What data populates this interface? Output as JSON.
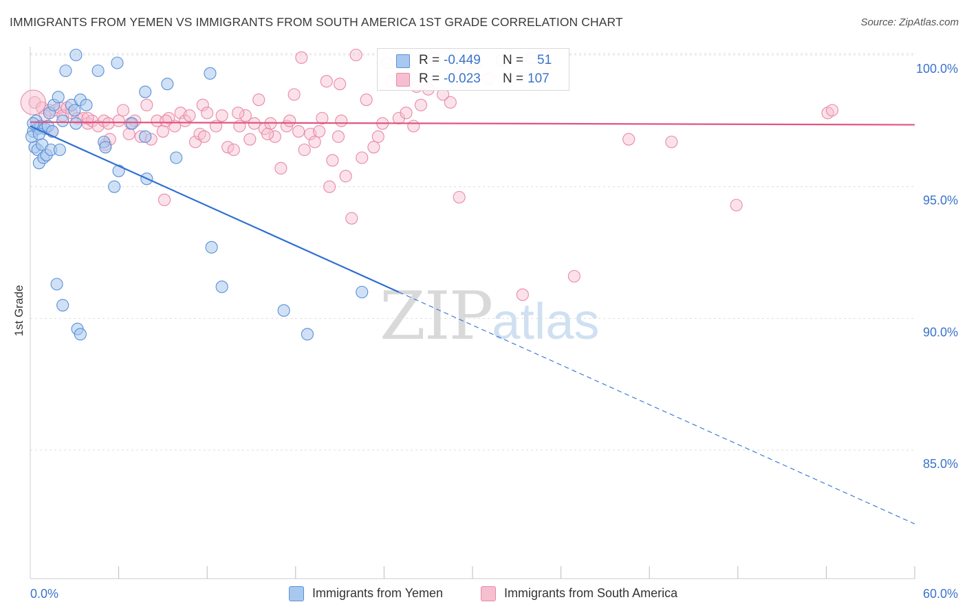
{
  "header": {
    "title": "IMMIGRANTS FROM YEMEN VS IMMIGRANTS FROM SOUTH AMERICA 1ST GRADE CORRELATION CHART",
    "source": "Source: ZipAtlas.com"
  },
  "watermark": {
    "part1": "ZIP",
    "part2": "atlas"
  },
  "legend": {
    "rows": [
      {
        "r_label": "R =",
        "r_value": "-0.449",
        "n_label": "N =",
        "n_value": "51"
      },
      {
        "r_label": "R =",
        "r_value": "-0.023",
        "n_label": "N =",
        "n_value": "107"
      }
    ]
  },
  "bottom_legend": {
    "series1": "Immigrants from Yemen",
    "series2": "Immigrants from South America"
  },
  "colors": {
    "series1_fill": "#a9c8ef",
    "series1_stroke": "#5a8fd6",
    "series1_line": "#2f6fd1",
    "series2_fill": "#f6bfd0",
    "series2_stroke": "#e889a6",
    "series2_line": "#e0557f",
    "axis_label": "#3a73c9",
    "grid": "#dddddd"
  },
  "chart_data": {
    "type": "scatter",
    "title": "IMMIGRANTS FROM YEMEN VS IMMIGRANTS FROM SOUTH AMERICA 1ST GRADE CORRELATION CHART",
    "xlabel": "",
    "ylabel": "1st Grade",
    "xlim": [
      0,
      60
    ],
    "ylim": [
      80.0,
      101.0
    ],
    "x_tick_labels": [
      "0.0%",
      "60.0%"
    ],
    "y_ticks": [
      100.0,
      95.0,
      90.0,
      85.0
    ],
    "y_tick_labels": [
      "100.0%",
      "95.0%",
      "90.0%",
      "85.0%"
    ],
    "grid": true,
    "series": [
      {
        "name": "Immigrants from Yemen",
        "color_key": "series1",
        "R": -0.449,
        "N": 51,
        "trend": {
          "x0": 0.0,
          "y0": 97.3,
          "x1": 25.0,
          "y1": 91.0,
          "dash_x1": 60.0,
          "dash_y1": 82.2
        },
        "points": [
          [
            0.2,
            97.1
          ],
          [
            0.3,
            96.5
          ],
          [
            0.4,
            97.5
          ],
          [
            0.5,
            97.2
          ],
          [
            0.5,
            96.4
          ],
          [
            0.6,
            95.9
          ],
          [
            0.7,
            97.3
          ],
          [
            0.8,
            96.6
          ],
          [
            0.9,
            96.1
          ],
          [
            1.0,
            97.2
          ],
          [
            1.1,
            96.2
          ],
          [
            1.2,
            97.3
          ],
          [
            1.3,
            97.8
          ],
          [
            1.4,
            96.4
          ],
          [
            1.5,
            97.1
          ],
          [
            1.6,
            98.1
          ],
          [
            1.9,
            98.4
          ],
          [
            2.0,
            96.4
          ],
          [
            2.2,
            97.5
          ],
          [
            2.4,
            99.4
          ],
          [
            2.8,
            98.1
          ],
          [
            3.0,
            97.9
          ],
          [
            3.1,
            97.4
          ],
          [
            3.1,
            100.0
          ],
          [
            3.4,
            98.3
          ],
          [
            3.8,
            98.1
          ],
          [
            4.6,
            99.4
          ],
          [
            5.0,
            96.7
          ],
          [
            5.1,
            96.5
          ],
          [
            5.7,
            95.0
          ],
          [
            5.9,
            99.7
          ],
          [
            6.0,
            95.6
          ],
          [
            6.9,
            97.4
          ],
          [
            7.8,
            96.9
          ],
          [
            7.8,
            98.6
          ],
          [
            7.9,
            95.3
          ],
          [
            9.3,
            98.9
          ],
          [
            9.9,
            96.1
          ],
          [
            12.2,
            99.3
          ],
          [
            12.3,
            92.7
          ],
          [
            13.0,
            91.2
          ],
          [
            17.2,
            90.3
          ],
          [
            18.8,
            89.4
          ],
          [
            22.5,
            91.0
          ],
          [
            1.8,
            91.3
          ],
          [
            2.2,
            90.5
          ],
          [
            3.2,
            89.6
          ],
          [
            3.4,
            89.4
          ],
          [
            0.1,
            96.9
          ],
          [
            0.2,
            97.4
          ],
          [
            0.6,
            97.0
          ]
        ]
      },
      {
        "name": "Immigrants from South America",
        "color_key": "series2",
        "R": -0.023,
        "N": 107,
        "trend": {
          "x0": 0.0,
          "y0": 97.45,
          "x1": 60.0,
          "y1": 97.35
        },
        "points": [
          [
            0.3,
            98.2
          ],
          [
            0.8,
            98.0
          ],
          [
            1.0,
            97.7
          ],
          [
            1.3,
            97.9
          ],
          [
            1.7,
            97.9
          ],
          [
            2.0,
            98.0
          ],
          [
            2.2,
            97.7
          ],
          [
            2.5,
            98.0
          ],
          [
            2.8,
            97.8
          ],
          [
            3.2,
            97.6
          ],
          [
            3.6,
            97.6
          ],
          [
            3.9,
            97.4
          ],
          [
            4.2,
            97.5
          ],
          [
            4.6,
            97.3
          ],
          [
            5.0,
            97.5
          ],
          [
            5.3,
            97.4
          ],
          [
            5.1,
            96.6
          ],
          [
            5.4,
            96.8
          ],
          [
            6.0,
            97.5
          ],
          [
            6.3,
            97.9
          ],
          [
            6.7,
            97.0
          ],
          [
            7.1,
            97.5
          ],
          [
            7.5,
            96.9
          ],
          [
            7.9,
            98.1
          ],
          [
            8.2,
            96.8
          ],
          [
            8.6,
            97.5
          ],
          [
            9.0,
            97.1
          ],
          [
            9.1,
            94.5
          ],
          [
            9.4,
            97.6
          ],
          [
            9.8,
            97.3
          ],
          [
            10.2,
            97.8
          ],
          [
            10.5,
            97.5
          ],
          [
            10.8,
            97.7
          ],
          [
            11.2,
            96.7
          ],
          [
            11.5,
            97.0
          ],
          [
            11.7,
            98.1
          ],
          [
            12.0,
            97.8
          ],
          [
            12.6,
            97.3
          ],
          [
            13.0,
            97.7
          ],
          [
            13.4,
            96.5
          ],
          [
            13.8,
            96.4
          ],
          [
            14.2,
            97.3
          ],
          [
            14.6,
            97.7
          ],
          [
            14.9,
            96.8
          ],
          [
            15.2,
            97.4
          ],
          [
            15.5,
            98.3
          ],
          [
            15.9,
            97.2
          ],
          [
            16.3,
            97.4
          ],
          [
            16.6,
            96.9
          ],
          [
            17.0,
            95.7
          ],
          [
            17.4,
            97.3
          ],
          [
            17.6,
            97.5
          ],
          [
            17.9,
            98.5
          ],
          [
            18.2,
            97.1
          ],
          [
            18.4,
            99.9
          ],
          [
            18.6,
            96.4
          ],
          [
            19.0,
            97.0
          ],
          [
            19.3,
            96.7
          ],
          [
            19.6,
            97.1
          ],
          [
            20.1,
            99.0
          ],
          [
            20.3,
            95.0
          ],
          [
            20.5,
            96.0
          ],
          [
            20.9,
            96.9
          ],
          [
            21.1,
            97.5
          ],
          [
            21.4,
            95.4
          ],
          [
            21.8,
            93.8
          ],
          [
            22.1,
            100.0
          ],
          [
            22.5,
            96.1
          ],
          [
            22.8,
            98.3
          ],
          [
            23.3,
            96.5
          ],
          [
            23.6,
            96.9
          ],
          [
            23.9,
            97.4
          ],
          [
            24.2,
            99.7
          ],
          [
            24.5,
            99.0
          ],
          [
            25.0,
            97.6
          ],
          [
            25.5,
            97.8
          ],
          [
            26.0,
            97.3
          ],
          [
            26.5,
            98.1
          ],
          [
            27.0,
            98.7
          ],
          [
            27.4,
            99.9
          ],
          [
            28.0,
            98.5
          ],
          [
            28.5,
            98.2
          ],
          [
            29.1,
            94.6
          ],
          [
            29.5,
            99.6
          ],
          [
            30.2,
            99.7
          ],
          [
            31.1,
            99.1
          ],
          [
            32.0,
            99.8
          ],
          [
            33.4,
            90.9
          ],
          [
            34.0,
            99.9
          ],
          [
            35.0,
            99.6
          ],
          [
            36.9,
            91.6
          ],
          [
            40.6,
            96.8
          ],
          [
            43.5,
            96.7
          ],
          [
            47.9,
            94.3
          ],
          [
            54.1,
            97.8
          ],
          [
            54.4,
            97.9
          ],
          [
            1.5,
            97.1
          ],
          [
            3.9,
            97.6
          ],
          [
            6.8,
            97.4
          ],
          [
            9.2,
            97.5
          ],
          [
            11.8,
            96.9
          ],
          [
            14.1,
            97.8
          ],
          [
            16.1,
            97.0
          ],
          [
            19.8,
            97.6
          ],
          [
            21.0,
            98.9
          ],
          [
            26.2,
            98.8
          ],
          [
            29.0,
            99.2
          ]
        ]
      }
    ]
  }
}
